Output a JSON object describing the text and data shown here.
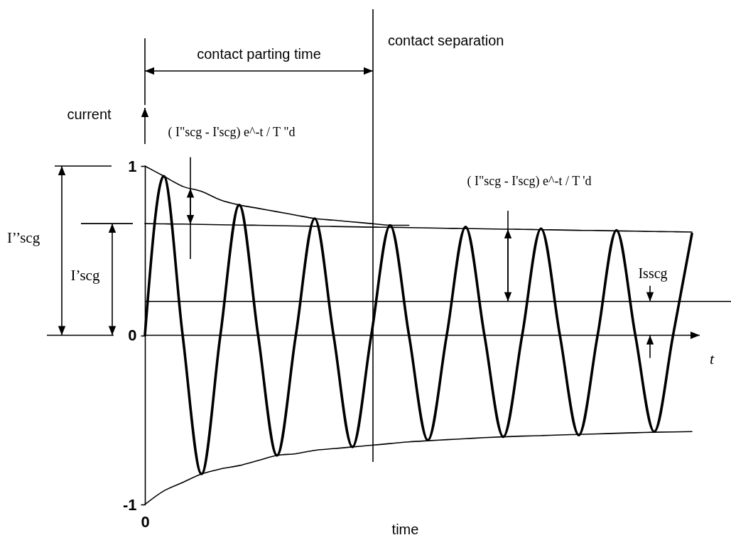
{
  "chart_data": {
    "type": "line",
    "xlabel": "time",
    "ylabel": "current",
    "annotations": [
      "contact parting time",
      "I’’scg",
      "I’scg",
      "( I\"scg - I'scg) e^-t / T \"d",
      "( I\"scg - I'scg) e^-t / T 'd",
      {
        "text": "Isscg",
        "y": 0.2
      }
    ],
    "categories": [
      "0",
      null,
      null,
      null,
      null,
      null,
      null,
      null,
      null,
      null,
      null,
      null,
      null,
      null,
      null,
      null,
      null,
      null,
      null,
      null,
      null,
      null,
      null,
      null,
      null,
      null,
      null,
      null,
      null,
      null
    ],
    "ylim": [
      -1,
      1
    ],
    "yticks": [
      -1,
      0,
      1
    ],
    "series": [
      {
        "color": "#000000",
        "values": [
          0,
          0.94,
          0,
          -0.82,
          0,
          0.77,
          0,
          -0.71,
          0,
          0.69,
          0,
          -0.66,
          0,
          0.65,
          0,
          -0.62,
          0,
          0.64,
          0,
          -0.6,
          0,
          0.63,
          0,
          -0.59,
          0,
          0.62,
          0,
          -0.57,
          0,
          0.6
        ]
      },
      {
        "color": "#000000",
        "values": [
          1,
          0.94,
          0.88,
          0.85,
          0.8,
          0.77,
          0.75,
          0.73,
          0.71,
          0.69,
          0.68,
          0.67,
          0.66,
          0.65,
          0.65,
          null,
          null,
          null,
          null,
          null,
          null,
          null,
          null,
          null,
          null,
          null,
          null,
          null,
          null,
          null
        ]
      },
      {
        "color": "#000000",
        "values": [
          -1,
          -0.92,
          -0.87,
          -0.82,
          -0.79,
          -0.77,
          -0.74,
          -0.71,
          -0.7,
          -0.68,
          -0.67,
          -0.66,
          -0.65,
          -0.64,
          -0.63,
          -0.623,
          -0.617,
          -0.611,
          -0.605,
          -0.6,
          -0.596,
          -0.593,
          -0.589,
          -0.586,
          -0.583,
          -0.579,
          -0.576,
          -0.573,
          -0.571,
          -0.569
        ]
      },
      {
        "color": "#000000",
        "values": [
          0.66,
          0.658,
          0.657,
          0.655,
          0.653,
          0.651,
          0.65,
          0.648,
          0.646,
          0.644,
          0.643,
          0.641,
          0.639,
          0.638,
          0.636,
          0.634,
          0.632,
          0.631,
          0.629,
          0.627,
          0.626,
          0.624,
          0.622,
          0.62,
          0.619,
          0.617,
          0.615,
          0.613,
          0.612,
          0.61
        ]
      }
    ],
    "ref_lines": [
      {
        "axis": "x",
        "label": "contact separation",
        "color": "#000000"
      },
      {
        "axis": "y",
        "value": 0.2,
        "color": "#000000"
      },
      {
        "axis": "y",
        "value": 0,
        "label": "t",
        "color": "#000000"
      }
    ],
    "grid": false
  }
}
